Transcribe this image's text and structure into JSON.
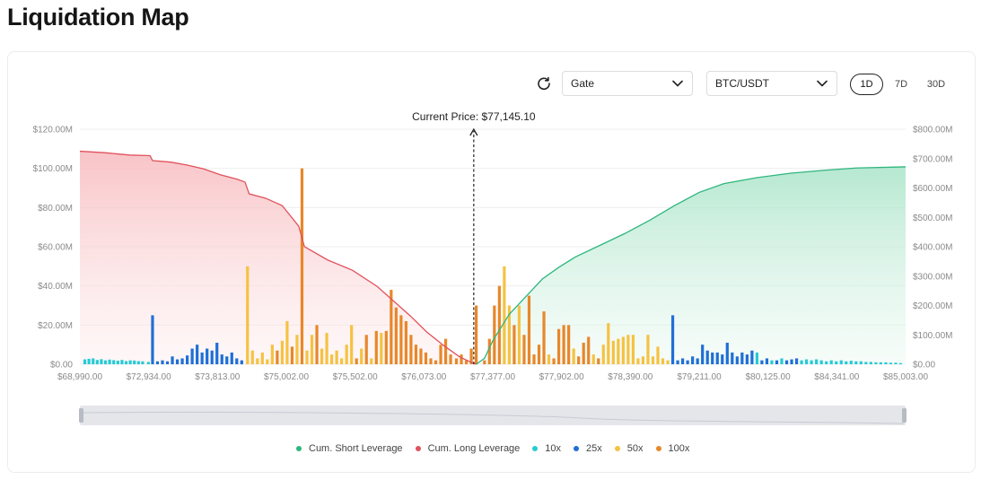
{
  "page": {
    "title": "Liquidation Map"
  },
  "controls": {
    "exchange": "Gate",
    "pair": "BTC/USDT",
    "ranges": [
      "1D",
      "7D",
      "30D"
    ],
    "active_range": "1D"
  },
  "colors": {
    "short": "#2eb67d",
    "long": "#e0525c",
    "x10": "#26cbd4",
    "x25": "#1f6fd6",
    "x50": "#f5c242",
    "x100": "#e8872a"
  },
  "chart_data": {
    "type": "bar",
    "current_price_label": "Current Price: $77,145.10",
    "current_price_position": 0.477,
    "left_axis": {
      "ticks": [
        "$0.00",
        "$20.00M",
        "$40.00M",
        "$60.00M",
        "$80.00M",
        "$100.00M",
        "$120.00M"
      ],
      "max": 120
    },
    "right_axis": {
      "ticks": [
        "$0.00",
        "$100.00M",
        "$200.00M",
        "$300.00M",
        "$400.00M",
        "$500.00M",
        "$600.00M",
        "$700.00M",
        "$800.00M"
      ],
      "max": 800
    },
    "x_ticks": [
      "$68,990.00",
      "$72,934.00",
      "$73,813.00",
      "$75,002.00",
      "$75,502.00",
      "$76,073.00",
      "$77,377.00",
      "$77,902.00",
      "$78,390.00",
      "$79,211.00",
      "$80,125.00",
      "$84,341.00",
      "$85,003.00"
    ],
    "legend": [
      {
        "key": "short",
        "label": "Cum. Short Leverage"
      },
      {
        "key": "long",
        "label": "Cum. Long Leverage"
      },
      {
        "key": "x10",
        "label": "10x"
      },
      {
        "key": "x25",
        "label": "25x"
      },
      {
        "key": "x50",
        "label": "50x"
      },
      {
        "key": "x100",
        "label": "100x"
      }
    ],
    "bars": [
      {
        "p": 0.006,
        "v": 2.5,
        "l": "x10"
      },
      {
        "p": 0.011,
        "v": 2.8,
        "l": "x10"
      },
      {
        "p": 0.016,
        "v": 3.0,
        "l": "x10"
      },
      {
        "p": 0.021,
        "v": 2.2,
        "l": "x10"
      },
      {
        "p": 0.026,
        "v": 2.6,
        "l": "x10"
      },
      {
        "p": 0.031,
        "v": 2.0,
        "l": "x10"
      },
      {
        "p": 0.036,
        "v": 2.4,
        "l": "x10"
      },
      {
        "p": 0.041,
        "v": 2.1,
        "l": "x10"
      },
      {
        "p": 0.046,
        "v": 1.8,
        "l": "x10"
      },
      {
        "p": 0.051,
        "v": 2.2,
        "l": "x10"
      },
      {
        "p": 0.056,
        "v": 1.6,
        "l": "x10"
      },
      {
        "p": 0.061,
        "v": 2.0,
        "l": "x10"
      },
      {
        "p": 0.066,
        "v": 1.9,
        "l": "x10"
      },
      {
        "p": 0.071,
        "v": 1.6,
        "l": "x10"
      },
      {
        "p": 0.076,
        "v": 1.5,
        "l": "x10"
      },
      {
        "p": 0.083,
        "v": 1.2,
        "l": "x10"
      },
      {
        "p": 0.088,
        "v": 25.0,
        "l": "x25"
      },
      {
        "p": 0.094,
        "v": 1.5,
        "l": "x25"
      },
      {
        "p": 0.1,
        "v": 2.0,
        "l": "x25"
      },
      {
        "p": 0.106,
        "v": 1.5,
        "l": "x25"
      },
      {
        "p": 0.112,
        "v": 4.0,
        "l": "x25"
      },
      {
        "p": 0.118,
        "v": 2.5,
        "l": "x25"
      },
      {
        "p": 0.124,
        "v": 3.0,
        "l": "x25"
      },
      {
        "p": 0.13,
        "v": 4.5,
        "l": "x25"
      },
      {
        "p": 0.136,
        "v": 8.0,
        "l": "x25"
      },
      {
        "p": 0.142,
        "v": 10.0,
        "l": "x25"
      },
      {
        "p": 0.148,
        "v": 6.0,
        "l": "x25"
      },
      {
        "p": 0.154,
        "v": 8.0,
        "l": "x25"
      },
      {
        "p": 0.16,
        "v": 7.0,
        "l": "x25"
      },
      {
        "p": 0.166,
        "v": 11.0,
        "l": "x25"
      },
      {
        "p": 0.172,
        "v": 5.0,
        "l": "x25"
      },
      {
        "p": 0.178,
        "v": 4.0,
        "l": "x25"
      },
      {
        "p": 0.184,
        "v": 6.0,
        "l": "x25"
      },
      {
        "p": 0.19,
        "v": 3.0,
        "l": "x25"
      },
      {
        "p": 0.196,
        "v": 2.0,
        "l": "x25"
      },
      {
        "p": 0.203,
        "v": 50.0,
        "l": "x50"
      },
      {
        "p": 0.209,
        "v": 7.0,
        "l": "x50"
      },
      {
        "p": 0.215,
        "v": 3.0,
        "l": "x50"
      },
      {
        "p": 0.221,
        "v": 6.0,
        "l": "x50"
      },
      {
        "p": 0.227,
        "v": 2.5,
        "l": "x50"
      },
      {
        "p": 0.233,
        "v": 10.0,
        "l": "x50"
      },
      {
        "p": 0.239,
        "v": 7.0,
        "l": "x100"
      },
      {
        "p": 0.245,
        "v": 12.0,
        "l": "x50"
      },
      {
        "p": 0.251,
        "v": 22.0,
        "l": "x50"
      },
      {
        "p": 0.257,
        "v": 9.0,
        "l": "x100"
      },
      {
        "p": 0.263,
        "v": 15.0,
        "l": "x50"
      },
      {
        "p": 0.269,
        "v": 100.0,
        "l": "x100"
      },
      {
        "p": 0.275,
        "v": 7.0,
        "l": "x50"
      },
      {
        "p": 0.281,
        "v": 15.0,
        "l": "x50"
      },
      {
        "p": 0.287,
        "v": 20.0,
        "l": "x100"
      },
      {
        "p": 0.293,
        "v": 8.0,
        "l": "x50"
      },
      {
        "p": 0.299,
        "v": 16.0,
        "l": "x50"
      },
      {
        "p": 0.305,
        "v": 5.0,
        "l": "x50"
      },
      {
        "p": 0.311,
        "v": 7.0,
        "l": "x50"
      },
      {
        "p": 0.317,
        "v": 3.0,
        "l": "x50"
      },
      {
        "p": 0.323,
        "v": 10.0,
        "l": "x50"
      },
      {
        "p": 0.329,
        "v": 20.0,
        "l": "x50"
      },
      {
        "p": 0.335,
        "v": 3.0,
        "l": "x100"
      },
      {
        "p": 0.341,
        "v": 8.0,
        "l": "x50"
      },
      {
        "p": 0.347,
        "v": 15.0,
        "l": "x100"
      },
      {
        "p": 0.353,
        "v": 3.0,
        "l": "x50"
      },
      {
        "p": 0.359,
        "v": 17.0,
        "l": "x100"
      },
      {
        "p": 0.365,
        "v": 16.0,
        "l": "x50"
      },
      {
        "p": 0.371,
        "v": 17.0,
        "l": "x100"
      },
      {
        "p": 0.377,
        "v": 38.0,
        "l": "x100"
      },
      {
        "p": 0.383,
        "v": 29.0,
        "l": "x100"
      },
      {
        "p": 0.389,
        "v": 25.0,
        "l": "x100"
      },
      {
        "p": 0.395,
        "v": 22.0,
        "l": "x100"
      },
      {
        "p": 0.401,
        "v": 15.0,
        "l": "x100"
      },
      {
        "p": 0.407,
        "v": 10.0,
        "l": "x100"
      },
      {
        "p": 0.413,
        "v": 8.0,
        "l": "x100"
      },
      {
        "p": 0.419,
        "v": 6.0,
        "l": "x100"
      },
      {
        "p": 0.425,
        "v": 3.0,
        "l": "x100"
      },
      {
        "p": 0.431,
        "v": 2.0,
        "l": "x100"
      },
      {
        "p": 0.437,
        "v": 10.0,
        "l": "x100"
      },
      {
        "p": 0.443,
        "v": 13.0,
        "l": "x100"
      },
      {
        "p": 0.449,
        "v": 5.0,
        "l": "x100"
      },
      {
        "p": 0.456,
        "v": 3.0,
        "l": "x100"
      },
      {
        "p": 0.462,
        "v": 5.0,
        "l": "x100"
      },
      {
        "p": 0.468,
        "v": 2.0,
        "l": "x100"
      },
      {
        "p": 0.474,
        "v": 8.0,
        "l": "x100"
      },
      {
        "p": 0.48,
        "v": 30.0,
        "l": "x100"
      },
      {
        "p": 0.49,
        "v": 2.0,
        "l": "x100"
      },
      {
        "p": 0.496,
        "v": 13.0,
        "l": "x100"
      },
      {
        "p": 0.502,
        "v": 30.0,
        "l": "x100"
      },
      {
        "p": 0.508,
        "v": 40.0,
        "l": "x100"
      },
      {
        "p": 0.514,
        "v": 50.0,
        "l": "x50"
      },
      {
        "p": 0.52,
        "v": 30.0,
        "l": "x50"
      },
      {
        "p": 0.526,
        "v": 20.0,
        "l": "x100"
      },
      {
        "p": 0.532,
        "v": 30.0,
        "l": "x50"
      },
      {
        "p": 0.538,
        "v": 15.0,
        "l": "x100"
      },
      {
        "p": 0.544,
        "v": 35.0,
        "l": "x100"
      },
      {
        "p": 0.55,
        "v": 5.0,
        "l": "x100"
      },
      {
        "p": 0.556,
        "v": 10.0,
        "l": "x100"
      },
      {
        "p": 0.562,
        "v": 27.0,
        "l": "x100"
      },
      {
        "p": 0.568,
        "v": 5.0,
        "l": "x50"
      },
      {
        "p": 0.574,
        "v": 3.0,
        "l": "x100"
      },
      {
        "p": 0.58,
        "v": 18.0,
        "l": "x100"
      },
      {
        "p": 0.586,
        "v": 20.0,
        "l": "x100"
      },
      {
        "p": 0.592,
        "v": 20.0,
        "l": "x100"
      },
      {
        "p": 0.598,
        "v": 8.0,
        "l": "x50"
      },
      {
        "p": 0.604,
        "v": 4.0,
        "l": "x100"
      },
      {
        "p": 0.61,
        "v": 11.0,
        "l": "x100"
      },
      {
        "p": 0.616,
        "v": 14.0,
        "l": "x100"
      },
      {
        "p": 0.622,
        "v": 5.0,
        "l": "x50"
      },
      {
        "p": 0.628,
        "v": 3.0,
        "l": "x100"
      },
      {
        "p": 0.634,
        "v": 10.0,
        "l": "x50"
      },
      {
        "p": 0.64,
        "v": 21.0,
        "l": "x50"
      },
      {
        "p": 0.646,
        "v": 12.0,
        "l": "x50"
      },
      {
        "p": 0.652,
        "v": 13.0,
        "l": "x50"
      },
      {
        "p": 0.658,
        "v": 14.0,
        "l": "x50"
      },
      {
        "p": 0.664,
        "v": 15.0,
        "l": "x50"
      },
      {
        "p": 0.67,
        "v": 15.0,
        "l": "x50"
      },
      {
        "p": 0.676,
        "v": 3.0,
        "l": "x50"
      },
      {
        "p": 0.682,
        "v": 4.0,
        "l": "x50"
      },
      {
        "p": 0.688,
        "v": 15.0,
        "l": "x50"
      },
      {
        "p": 0.694,
        "v": 4.0,
        "l": "x50"
      },
      {
        "p": 0.7,
        "v": 9.0,
        "l": "x50"
      },
      {
        "p": 0.706,
        "v": 3.0,
        "l": "x50"
      },
      {
        "p": 0.712,
        "v": 2.0,
        "l": "x50"
      },
      {
        "p": 0.718,
        "v": 25.0,
        "l": "x25"
      },
      {
        "p": 0.724,
        "v": 2.0,
        "l": "x25"
      },
      {
        "p": 0.73,
        "v": 3.0,
        "l": "x25"
      },
      {
        "p": 0.736,
        "v": 2.0,
        "l": "x25"
      },
      {
        "p": 0.742,
        "v": 4.0,
        "l": "x25"
      },
      {
        "p": 0.748,
        "v": 3.0,
        "l": "x25"
      },
      {
        "p": 0.754,
        "v": 10.0,
        "l": "x25"
      },
      {
        "p": 0.76,
        "v": 7.0,
        "l": "x25"
      },
      {
        "p": 0.766,
        "v": 6.0,
        "l": "x25"
      },
      {
        "p": 0.772,
        "v": 6.0,
        "l": "x25"
      },
      {
        "p": 0.778,
        "v": 5.0,
        "l": "x25"
      },
      {
        "p": 0.784,
        "v": 11.0,
        "l": "x25"
      },
      {
        "p": 0.79,
        "v": 6.0,
        "l": "x25"
      },
      {
        "p": 0.796,
        "v": 4.0,
        "l": "x25"
      },
      {
        "p": 0.802,
        "v": 6.0,
        "l": "x25"
      },
      {
        "p": 0.808,
        "v": 5.0,
        "l": "x25"
      },
      {
        "p": 0.814,
        "v": 7.0,
        "l": "x25"
      },
      {
        "p": 0.82,
        "v": 6.0,
        "l": "x10"
      },
      {
        "p": 0.826,
        "v": 2.0,
        "l": "x25"
      },
      {
        "p": 0.832,
        "v": 3.0,
        "l": "x25"
      },
      {
        "p": 0.838,
        "v": 2.0,
        "l": "x10"
      },
      {
        "p": 0.844,
        "v": 2.0,
        "l": "x25"
      },
      {
        "p": 0.85,
        "v": 3.0,
        "l": "x10"
      },
      {
        "p": 0.856,
        "v": 2.0,
        "l": "x25"
      },
      {
        "p": 0.862,
        "v": 2.5,
        "l": "x25"
      },
      {
        "p": 0.868,
        "v": 3.0,
        "l": "x25"
      },
      {
        "p": 0.874,
        "v": 2.0,
        "l": "x10"
      },
      {
        "p": 0.88,
        "v": 2.5,
        "l": "x10"
      },
      {
        "p": 0.886,
        "v": 2.0,
        "l": "x10"
      },
      {
        "p": 0.892,
        "v": 2.5,
        "l": "x10"
      },
      {
        "p": 0.898,
        "v": 2.0,
        "l": "x10"
      },
      {
        "p": 0.904,
        "v": 1.5,
        "l": "x10"
      },
      {
        "p": 0.91,
        "v": 2.0,
        "l": "x10"
      },
      {
        "p": 0.916,
        "v": 1.5,
        "l": "x10"
      },
      {
        "p": 0.922,
        "v": 2.0,
        "l": "x10"
      },
      {
        "p": 0.928,
        "v": 1.5,
        "l": "x10"
      },
      {
        "p": 0.934,
        "v": 1.8,
        "l": "x10"
      },
      {
        "p": 0.94,
        "v": 1.5,
        "l": "x10"
      },
      {
        "p": 0.946,
        "v": 1.5,
        "l": "x10"
      },
      {
        "p": 0.952,
        "v": 1.2,
        "l": "x10"
      },
      {
        "p": 0.958,
        "v": 1.2,
        "l": "x10"
      },
      {
        "p": 0.964,
        "v": 1.0,
        "l": "x10"
      },
      {
        "p": 0.97,
        "v": 1.0,
        "l": "x10"
      },
      {
        "p": 0.976,
        "v": 1.0,
        "l": "x10"
      },
      {
        "p": 0.982,
        "v": 0.8,
        "l": "x10"
      },
      {
        "p": 0.988,
        "v": 0.8,
        "l": "x10"
      },
      {
        "p": 0.994,
        "v": 0.6,
        "l": "x10"
      }
    ],
    "long_cum": [
      {
        "p": 0.0,
        "v": 725
      },
      {
        "p": 0.03,
        "v": 720
      },
      {
        "p": 0.06,
        "v": 712
      },
      {
        "p": 0.085,
        "v": 710
      },
      {
        "p": 0.088,
        "v": 693
      },
      {
        "p": 0.11,
        "v": 688
      },
      {
        "p": 0.13,
        "v": 678
      },
      {
        "p": 0.15,
        "v": 665
      },
      {
        "p": 0.17,
        "v": 645
      },
      {
        "p": 0.19,
        "v": 630
      },
      {
        "p": 0.2,
        "v": 620
      },
      {
        "p": 0.205,
        "v": 580
      },
      {
        "p": 0.225,
        "v": 565
      },
      {
        "p": 0.245,
        "v": 540
      },
      {
        "p": 0.265,
        "v": 470
      },
      {
        "p": 0.272,
        "v": 400
      },
      {
        "p": 0.3,
        "v": 355
      },
      {
        "p": 0.33,
        "v": 320
      },
      {
        "p": 0.36,
        "v": 265
      },
      {
        "p": 0.38,
        "v": 215
      },
      {
        "p": 0.4,
        "v": 165
      },
      {
        "p": 0.42,
        "v": 110
      },
      {
        "p": 0.44,
        "v": 65
      },
      {
        "p": 0.46,
        "v": 25
      },
      {
        "p": 0.475,
        "v": 5
      },
      {
        "p": 0.48,
        "v": 0
      }
    ],
    "short_cum": [
      {
        "p": 0.48,
        "v": 0
      },
      {
        "p": 0.49,
        "v": 20
      },
      {
        "p": 0.5,
        "v": 80
      },
      {
        "p": 0.52,
        "v": 170
      },
      {
        "p": 0.54,
        "v": 230
      },
      {
        "p": 0.56,
        "v": 290
      },
      {
        "p": 0.58,
        "v": 330
      },
      {
        "p": 0.6,
        "v": 365
      },
      {
        "p": 0.63,
        "v": 405
      },
      {
        "p": 0.66,
        "v": 445
      },
      {
        "p": 0.69,
        "v": 490
      },
      {
        "p": 0.72,
        "v": 540
      },
      {
        "p": 0.75,
        "v": 585
      },
      {
        "p": 0.78,
        "v": 615
      },
      {
        "p": 0.82,
        "v": 635
      },
      {
        "p": 0.86,
        "v": 650
      },
      {
        "p": 0.9,
        "v": 660
      },
      {
        "p": 0.94,
        "v": 668
      },
      {
        "p": 1.0,
        "v": 672
      }
    ]
  }
}
